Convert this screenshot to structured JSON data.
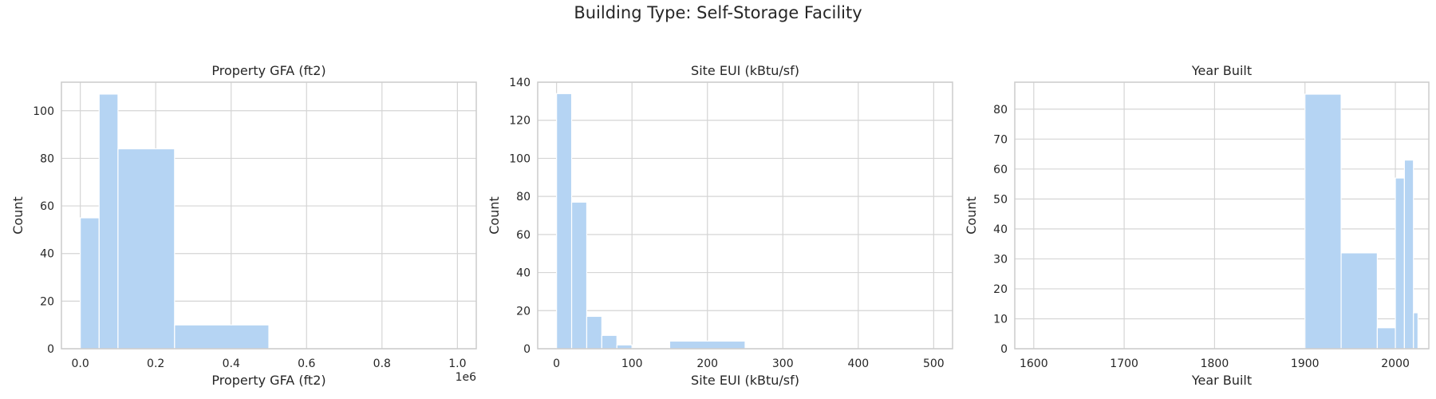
{
  "suptitle": "Building Type: Self-Storage Facility",
  "colors": {
    "bar": "#b5d4f3",
    "grid": "#d5d5d5",
    "axis": "#cccccc",
    "text": "#262626"
  },
  "chart_data": [
    {
      "type": "bar",
      "title": "Property GFA (ft2)",
      "xlabel": "Property GFA (ft2)",
      "ylabel": "Count",
      "xlim": [
        -0.05,
        1.05
      ],
      "ylim": [
        0,
        112
      ],
      "x_ticks": [
        0.0,
        0.2,
        0.4,
        0.6,
        0.8,
        1.0
      ],
      "x_tick_labels": [
        "0.0",
        "0.2",
        "0.4",
        "0.6",
        "0.8",
        "1.0"
      ],
      "y_ticks": [
        0,
        20,
        40,
        60,
        80,
        100
      ],
      "x_offset_text": "1e6",
      "grid": true,
      "bins": [
        {
          "x0": 0.0,
          "x1": 0.05,
          "count": 55
        },
        {
          "x0": 0.05,
          "x1": 0.1,
          "count": 107
        },
        {
          "x0": 0.1,
          "x1": 0.25,
          "count": 84
        },
        {
          "x0": 0.25,
          "x1": 0.5,
          "count": 10
        }
      ]
    },
    {
      "type": "bar",
      "title": "Site EUI (kBtu/sf)",
      "xlabel": "Site EUI (kBtu/sf)",
      "ylabel": "Count",
      "xlim": [
        -25,
        525
      ],
      "ylim": [
        0,
        140
      ],
      "x_ticks": [
        0,
        100,
        200,
        300,
        400,
        500
      ],
      "x_tick_labels": [
        "0",
        "100",
        "200",
        "300",
        "400",
        "500"
      ],
      "y_ticks": [
        0,
        20,
        40,
        60,
        80,
        100,
        120,
        140
      ],
      "grid": true,
      "bins": [
        {
          "x0": 0,
          "x1": 20,
          "count": 134
        },
        {
          "x0": 20,
          "x1": 40,
          "count": 77
        },
        {
          "x0": 40,
          "x1": 60,
          "count": 17
        },
        {
          "x0": 60,
          "x1": 80,
          "count": 7
        },
        {
          "x0": 80,
          "x1": 100,
          "count": 2
        },
        {
          "x0": 150,
          "x1": 250,
          "count": 4
        }
      ]
    },
    {
      "type": "bar",
      "title": "Year Built",
      "xlabel": "Year Built",
      "ylabel": "Count",
      "xlim": [
        1579,
        2037
      ],
      "ylim": [
        0,
        89
      ],
      "x_ticks": [
        1600,
        1700,
        1800,
        1900,
        2000
      ],
      "x_tick_labels": [
        "1600",
        "1700",
        "1800",
        "1900",
        "2000"
      ],
      "y_ticks": [
        0,
        10,
        20,
        30,
        40,
        50,
        60,
        70,
        80
      ],
      "grid": true,
      "bins": [
        {
          "x0": 1900,
          "x1": 1940,
          "count": 85
        },
        {
          "x0": 1940,
          "x1": 1980,
          "count": 32
        },
        {
          "x0": 1980,
          "x1": 2000,
          "count": 7
        },
        {
          "x0": 2000,
          "x1": 2010,
          "count": 57
        },
        {
          "x0": 2010,
          "x1": 2020,
          "count": 63
        },
        {
          "x0": 2020,
          "x1": 2025,
          "count": 12
        }
      ]
    }
  ]
}
